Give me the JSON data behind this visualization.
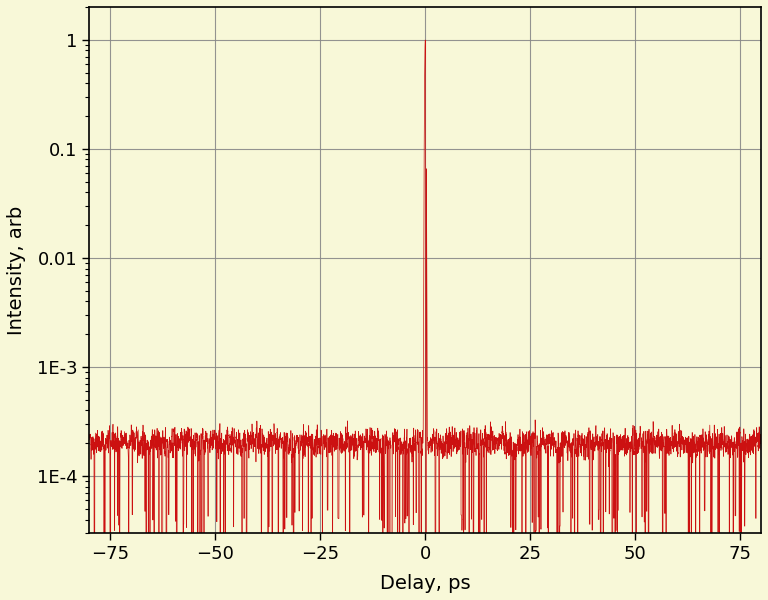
{
  "title": "",
  "xlabel": "Delay, ps",
  "ylabel": "Intensity, arb",
  "xlim": [
    -80,
    80
  ],
  "ylim_log": [
    3e-05,
    2.0
  ],
  "background_color": "#f8f8d8",
  "line_color": "#cc1111",
  "x_ticks": [
    -75,
    -50,
    -25,
    0,
    25,
    50,
    75
  ],
  "ytick_vals": [
    0.0001,
    0.001,
    0.01,
    0.1,
    1
  ],
  "ytick_labels": [
    "1E-4",
    "1E-3",
    "0.01",
    "0.1",
    "1"
  ],
  "noise_floor": 0.0002,
  "seed": 42
}
